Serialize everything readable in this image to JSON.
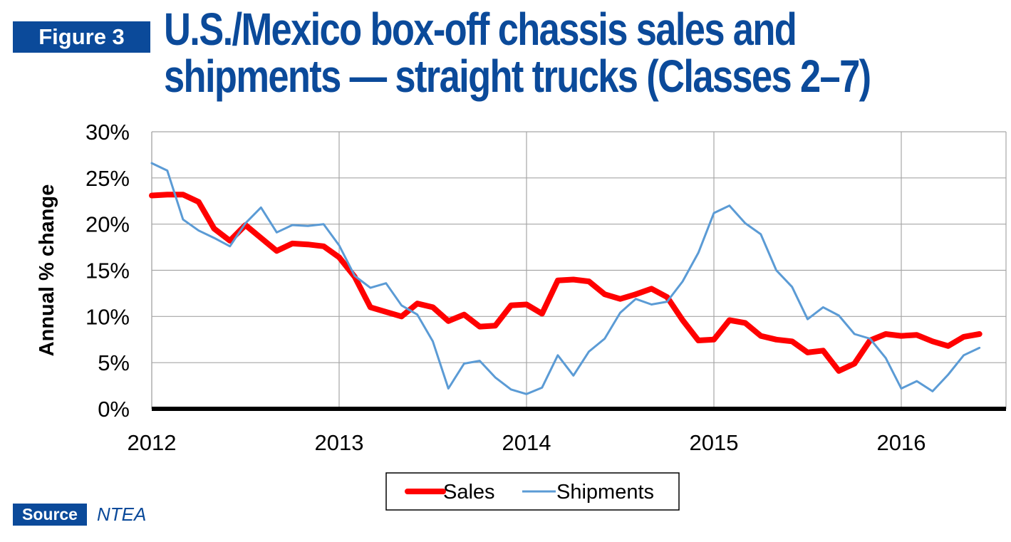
{
  "figure_label": "Figure 3",
  "title_line1": "U.S./Mexico box-off chassis sales and",
  "title_line2": "shipments — straight trucks (Classes 2–7)",
  "source_label": "Source",
  "source_text": "NTEA",
  "colors": {
    "brand_blue": "#0b4a9a",
    "sales": "#ff0000",
    "shipments": "#5b9bd5",
    "axis": "#000000",
    "grid": "#a6a6a6"
  },
  "chart_data": {
    "type": "line",
    "ylabel": "Annual % change",
    "xlabel": "",
    "ylim": [
      0,
      30
    ],
    "yticks": [
      0,
      5,
      10,
      15,
      20,
      25,
      30
    ],
    "ytick_labels": [
      "0%",
      "5%",
      "10%",
      "15%",
      "20%",
      "25%",
      "30%"
    ],
    "xlim": [
      2012,
      2016.5
    ],
    "xticks": [
      2012,
      2013,
      2014,
      2015,
      2016
    ],
    "xtick_labels": [
      "2012",
      "2013",
      "2014",
      "2015",
      "2016"
    ],
    "grid": true,
    "legend_position": "bottom-center",
    "series": [
      {
        "name": "Sales",
        "color": "#ff0000",
        "x": [
          2012.0,
          2012.083,
          2012.167,
          2012.25,
          2012.333,
          2012.417,
          2012.5,
          2012.583,
          2012.667,
          2012.75,
          2012.833,
          2012.917,
          2013.0,
          2013.083,
          2013.167,
          2013.25,
          2013.333,
          2013.417,
          2013.5,
          2013.583,
          2013.667,
          2013.75,
          2013.833,
          2013.917,
          2014.0,
          2014.083,
          2014.167,
          2014.25,
          2014.333,
          2014.417,
          2014.5,
          2014.583,
          2014.667,
          2014.75,
          2014.833,
          2014.917,
          2015.0,
          2015.083,
          2015.167,
          2015.25,
          2015.333,
          2015.417,
          2015.5,
          2015.583,
          2015.667,
          2015.75,
          2015.833,
          2015.917,
          2016.0,
          2016.083,
          2016.167,
          2016.25,
          2016.333,
          2016.417
        ],
        "values": [
          23.1,
          23.2,
          23.2,
          22.4,
          19.5,
          18.2,
          19.9,
          18.5,
          17.1,
          17.9,
          17.8,
          17.6,
          16.4,
          14.3,
          11.0,
          10.5,
          10.0,
          11.4,
          11.0,
          9.5,
          10.2,
          8.9,
          9.0,
          11.2,
          11.3,
          10.3,
          13.9,
          14.0,
          13.8,
          12.4,
          11.9,
          12.4,
          13.0,
          12.1,
          9.6,
          7.4,
          7.5,
          9.6,
          9.3,
          7.9,
          7.5,
          7.3,
          6.1,
          6.3,
          4.1,
          4.9,
          7.4,
          8.1,
          7.9,
          8.0,
          7.3,
          6.8,
          7.8,
          8.1
        ]
      },
      {
        "name": "Shipments",
        "color": "#5b9bd5",
        "x": [
          2012.0,
          2012.083,
          2012.167,
          2012.25,
          2012.333,
          2012.417,
          2012.5,
          2012.583,
          2012.667,
          2012.75,
          2012.833,
          2012.917,
          2013.0,
          2013.083,
          2013.167,
          2013.25,
          2013.333,
          2013.417,
          2013.5,
          2013.583,
          2013.667,
          2013.75,
          2013.833,
          2013.917,
          2014.0,
          2014.083,
          2014.167,
          2014.25,
          2014.333,
          2014.417,
          2014.5,
          2014.583,
          2014.667,
          2014.75,
          2014.833,
          2014.917,
          2015.0,
          2015.083,
          2015.167,
          2015.25,
          2015.333,
          2015.417,
          2015.5,
          2015.583,
          2015.667,
          2015.75,
          2015.833,
          2015.917,
          2016.0,
          2016.083,
          2016.167,
          2016.25,
          2016.333,
          2016.417
        ],
        "values": [
          26.6,
          25.8,
          20.5,
          19.3,
          18.5,
          17.6,
          20.1,
          21.8,
          19.1,
          19.9,
          19.8,
          20.0,
          17.7,
          14.4,
          13.1,
          13.6,
          11.2,
          10.2,
          7.3,
          2.2,
          4.9,
          5.2,
          3.4,
          2.1,
          1.6,
          2.3,
          5.8,
          3.6,
          6.2,
          7.6,
          10.4,
          11.9,
          11.3,
          11.6,
          13.8,
          16.9,
          21.2,
          22.0,
          20.1,
          18.9,
          15.0,
          13.2,
          9.7,
          11.0,
          10.1,
          8.1,
          7.6,
          5.5,
          2.2,
          3.0,
          1.9,
          3.7,
          5.8,
          6.6
        ]
      }
    ]
  }
}
